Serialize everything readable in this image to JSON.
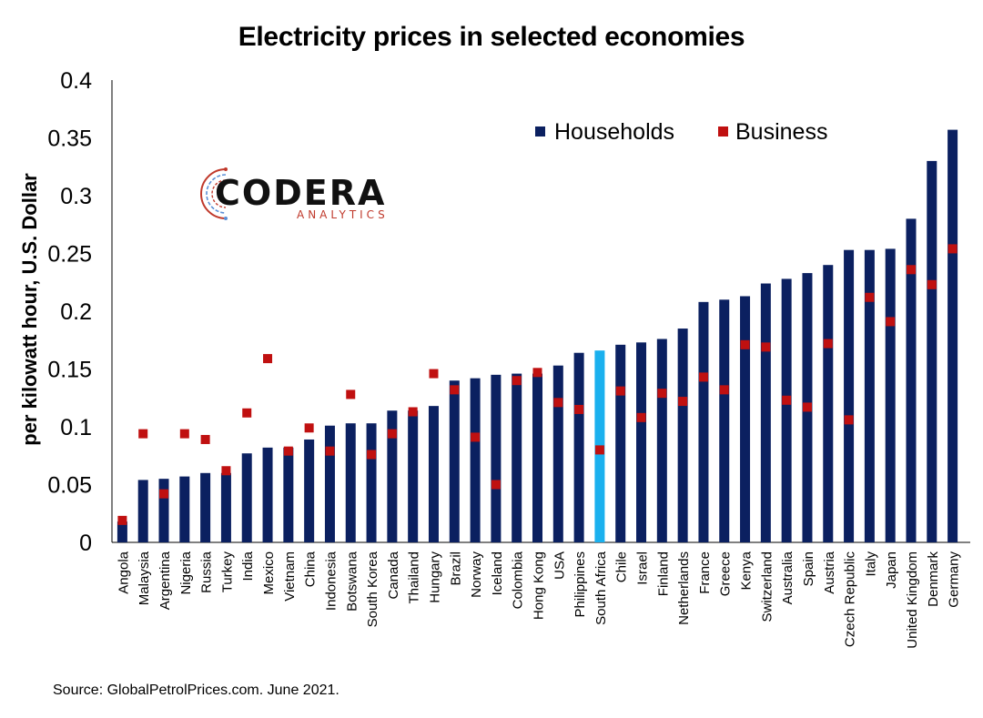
{
  "chart_data": {
    "type": "bar",
    "title": "Electricity prices in selected economies",
    "ylabel": "per kilowatt hour, U.S. Dollar",
    "xlabel": "",
    "ylim": [
      0,
      0.4
    ],
    "yticks": [
      "0",
      "0.05",
      "0.1",
      "0.15",
      "0.2",
      "0.25",
      "0.3",
      "0.35",
      "0.4"
    ],
    "legend_position": "top-right",
    "grid": false,
    "categories": [
      "Angola",
      "Malaysia",
      "Argentina",
      "Nigeria",
      "Russia",
      "Turkey",
      "India",
      "Mexico",
      "Vietnam",
      "China",
      "Indonesia",
      "Botswana",
      "South Korea",
      "Canada",
      "Thailand",
      "Hungary",
      "Brazil",
      "Norway",
      "Iceland",
      "Colombia",
      "Hong Kong",
      "USA",
      "Philippines",
      "South Africa",
      "Chile",
      "Israel",
      "Finland",
      "Netherlands",
      "France",
      "Greece",
      "Kenya",
      "Switzerland",
      "Australia",
      "Spain",
      "Austria",
      "Czech Republic",
      "Italy",
      "Japan",
      "United Kingdom",
      "Denmark",
      "Germany"
    ],
    "highlight_category": "South Africa",
    "series": [
      {
        "name": "Households",
        "mark": "bar",
        "color": "#0b2060",
        "values": [
          0.018,
          0.054,
          0.055,
          0.057,
          0.06,
          0.06,
          0.077,
          0.082,
          0.082,
          0.089,
          0.101,
          0.103,
          0.103,
          0.114,
          0.114,
          0.118,
          0.14,
          0.142,
          0.145,
          0.146,
          0.146,
          0.153,
          0.164,
          0.166,
          0.171,
          0.173,
          0.176,
          0.185,
          0.208,
          0.21,
          0.213,
          0.224,
          0.228,
          0.233,
          0.24,
          0.253,
          0.253,
          0.254,
          0.28,
          0.33,
          0.357
        ]
      },
      {
        "name": "Business",
        "mark": "square",
        "color": "#c01010",
        "values": [
          0.019,
          0.094,
          0.042,
          0.094,
          0.089,
          0.062,
          0.112,
          0.159,
          0.079,
          0.099,
          0.079,
          0.128,
          0.076,
          0.094,
          0.113,
          0.146,
          0.132,
          0.091,
          0.05,
          0.14,
          0.147,
          0.121,
          0.115,
          0.08,
          0.131,
          0.108,
          0.129,
          0.122,
          0.143,
          0.132,
          0.171,
          0.169,
          0.123,
          0.117,
          0.172,
          0.106,
          0.212,
          0.191,
          0.236,
          0.223,
          0.254
        ]
      }
    ],
    "highlight_color": "#1ab0ee",
    "source": "Source: GlobalPetrolPrices.com. June 2021."
  },
  "logo": {
    "word": "CODERA",
    "sub": "ANALYTICS"
  }
}
